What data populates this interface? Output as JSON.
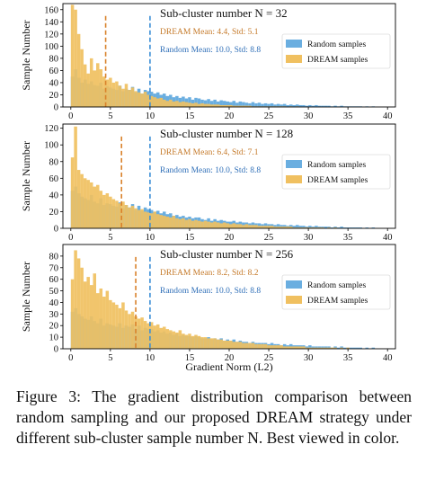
{
  "figure": {
    "xlabel": "Gradient Norm (L2)",
    "colors": {
      "random": "#6aaee0",
      "dream": "#f0c060",
      "dream_line": "#d9822b",
      "random_line": "#3d8fd6",
      "dream_text": "#c57a2a",
      "random_text": "#2f6fb8"
    }
  },
  "chart_data": [
    {
      "type": "bar",
      "title": "Sub-cluster number N = 32",
      "ylabel": "Sample Number",
      "xlabel": "",
      "xlim": [
        -1,
        41
      ],
      "ylim": [
        0,
        170
      ],
      "xticks": [
        0,
        5,
        10,
        15,
        20,
        25,
        30,
        35,
        40
      ],
      "yticks": [
        0,
        20,
        40,
        60,
        80,
        100,
        120,
        140,
        160
      ],
      "bin_width": 0.4,
      "legend": {
        "position": "right",
        "entries": [
          "Random samples",
          "DREAM samples"
        ]
      },
      "annotations": [
        "DREAM Mean: 4.4, Std: 5.1",
        "Random Mean: 10.0, Std: 8.8"
      ],
      "vlines": {
        "dream": 4.4,
        "random": 10.0
      },
      "series": [
        {
          "name": "Random samples",
          "values": [
            50,
            62,
            48,
            40,
            45,
            38,
            42,
            36,
            35,
            40,
            30,
            34,
            32,
            30,
            28,
            35,
            26,
            30,
            28,
            33,
            24,
            30,
            22,
            28,
            26,
            25,
            22,
            24,
            20,
            22,
            18,
            20,
            16,
            18,
            15,
            17,
            14,
            16,
            12,
            15,
            14,
            12,
            11,
            13,
            10,
            12,
            9,
            11,
            10,
            9,
            8,
            10,
            7,
            9,
            8,
            7,
            6,
            8,
            6,
            7,
            5,
            6,
            5,
            6,
            4,
            5,
            4,
            5,
            3,
            4,
            3,
            4,
            3,
            3,
            2,
            3,
            2,
            3,
            2,
            2,
            2,
            2,
            1,
            2,
            1,
            2,
            1,
            1,
            1,
            1,
            1,
            1,
            0,
            1,
            0,
            1,
            0,
            0,
            0,
            0
          ]
        },
        {
          "name": "DREAM samples",
          "values": [
            168,
            160,
            120,
            95,
            70,
            55,
            80,
            60,
            72,
            62,
            50,
            45,
            48,
            40,
            42,
            35,
            30,
            38,
            28,
            32,
            26,
            24,
            22,
            25,
            20,
            18,
            16,
            14,
            15,
            12,
            10,
            12,
            9,
            10,
            8,
            9,
            8,
            7,
            6,
            7,
            5,
            6,
            5,
            5,
            4,
            4,
            4,
            3,
            3,
            3,
            3,
            2,
            2,
            2,
            2,
            2,
            2,
            1,
            1,
            1,
            1,
            1,
            1,
            1,
            1,
            1,
            1,
            1,
            0,
            1,
            0,
            1,
            0,
            0,
            0,
            0,
            0,
            0,
            0,
            0,
            0,
            0,
            0,
            0,
            0,
            0,
            0,
            0,
            0,
            0,
            0,
            0,
            0,
            0,
            0,
            0,
            0,
            0,
            0,
            0
          ]
        }
      ]
    },
    {
      "type": "bar",
      "title": "Sub-cluster number N = 128",
      "ylabel": "Sample Number",
      "xlabel": "",
      "xlim": [
        -1,
        41
      ],
      "ylim": [
        0,
        125
      ],
      "xticks": [
        0,
        5,
        10,
        15,
        20,
        25,
        30,
        35,
        40
      ],
      "yticks": [
        0,
        20,
        40,
        60,
        80,
        100,
        120
      ],
      "bin_width": 0.4,
      "legend": {
        "position": "right",
        "entries": [
          "Random samples",
          "DREAM samples"
        ]
      },
      "annotations": [
        "DREAM Mean: 6.4, Std: 7.1",
        "Random Mean: 10.0, Std: 8.8"
      ],
      "vlines": {
        "dream": 6.4,
        "random": 10.0
      },
      "series": [
        {
          "name": "Random samples",
          "values": [
            45,
            50,
            42,
            38,
            36,
            34,
            40,
            32,
            30,
            36,
            28,
            30,
            29,
            27,
            26,
            31,
            24,
            28,
            25,
            29,
            22,
            27,
            21,
            25,
            23,
            22,
            20,
            21,
            18,
            20,
            17,
            18,
            15,
            16,
            14,
            15,
            13,
            14,
            12,
            13,
            13,
            11,
            10,
            12,
            9,
            11,
            9,
            10,
            9,
            8,
            8,
            9,
            7,
            8,
            7,
            7,
            6,
            7,
            6,
            6,
            5,
            6,
            5,
            5,
            4,
            5,
            4,
            4,
            3,
            4,
            3,
            4,
            3,
            3,
            2,
            3,
            2,
            3,
            2,
            2,
            2,
            2,
            1,
            2,
            1,
            2,
            1,
            1,
            1,
            1,
            1,
            1,
            0,
            1,
            0,
            1,
            0,
            0,
            0,
            0
          ]
        },
        {
          "name": "DREAM samples",
          "values": [
            85,
            122,
            70,
            65,
            60,
            58,
            55,
            50,
            52,
            45,
            40,
            42,
            38,
            35,
            33,
            30,
            32,
            28,
            25,
            27,
            24,
            22,
            23,
            20,
            19,
            18,
            20,
            17,
            16,
            15,
            14,
            13,
            15,
            12,
            11,
            12,
            10,
            11,
            9,
            10,
            9,
            8,
            9,
            8,
            7,
            8,
            7,
            6,
            7,
            6,
            5,
            6,
            5,
            5,
            4,
            5,
            4,
            4,
            4,
            3,
            3,
            3,
            3,
            3,
            2,
            2,
            2,
            2,
            2,
            2,
            1,
            1,
            1,
            1,
            1,
            1,
            1,
            1,
            1,
            1,
            0,
            1,
            0,
            1,
            0,
            0,
            0,
            0,
            0,
            0,
            0,
            0,
            0,
            0,
            0,
            0,
            0,
            0,
            0,
            0
          ]
        }
      ]
    },
    {
      "type": "bar",
      "title": "Sub-cluster number N = 256",
      "ylabel": "Sample Number",
      "xlabel": "Gradient Norm (L2)",
      "xlim": [
        -1,
        41
      ],
      "ylim": [
        0,
        90
      ],
      "xticks": [
        0,
        5,
        10,
        15,
        20,
        25,
        30,
        35,
        40
      ],
      "yticks": [
        0,
        10,
        20,
        30,
        40,
        50,
        60,
        70,
        80
      ],
      "bin_width": 0.4,
      "legend": {
        "position": "right",
        "entries": [
          "Random samples",
          "DREAM samples"
        ]
      },
      "annotations": [
        "DREAM Mean: 8.2, Std: 8.2",
        "Random Mean: 10.0, Std: 8.8"
      ],
      "vlines": {
        "dream": 8.2,
        "random": 10.0
      },
      "series": [
        {
          "name": "Random samples",
          "values": [
            32,
            35,
            30,
            28,
            26,
            25,
            28,
            24,
            22,
            26,
            20,
            22,
            21,
            20,
            19,
            22,
            18,
            20,
            19,
            21,
            17,
            20,
            16,
            18,
            17,
            17,
            15,
            16,
            14,
            15,
            13,
            14,
            12,
            13,
            11,
            12,
            11,
            11,
            10,
            11,
            10,
            9,
            9,
            10,
            8,
            9,
            8,
            9,
            7,
            8,
            7,
            8,
            6,
            7,
            6,
            6,
            5,
            6,
            5,
            5,
            5,
            5,
            4,
            5,
            4,
            4,
            3,
            4,
            3,
            4,
            3,
            3,
            3,
            3,
            2,
            3,
            2,
            2,
            2,
            2,
            2,
            2,
            1,
            2,
            1,
            2,
            1,
            1,
            1,
            1,
            1,
            1,
            0,
            1,
            0,
            1,
            0,
            0,
            0,
            0
          ]
        },
        {
          "name": "DREAM samples",
          "values": [
            60,
            85,
            78,
            70,
            58,
            62,
            55,
            65,
            48,
            52,
            45,
            50,
            42,
            40,
            38,
            35,
            40,
            33,
            30,
            32,
            28,
            26,
            27,
            24,
            22,
            23,
            20,
            21,
            18,
            19,
            17,
            16,
            15,
            14,
            16,
            13,
            12,
            13,
            11,
            12,
            11,
            10,
            10,
            9,
            9,
            9,
            8,
            8,
            7,
            7,
            7,
            6,
            6,
            6,
            5,
            5,
            5,
            5,
            4,
            4,
            4,
            4,
            3,
            3,
            3,
            3,
            3,
            2,
            2,
            2,
            2,
            2,
            2,
            2,
            1,
            1,
            1,
            1,
            1,
            1,
            1,
            1,
            1,
            1,
            0,
            1,
            0,
            1,
            0,
            0,
            0,
            0,
            0,
            0,
            0,
            0,
            0,
            0,
            0,
            0
          ]
        }
      ]
    }
  ],
  "caption": "Figure 3: The gradient distribution comparison between random sampling and our proposed DREAM strategy under different sub-cluster sample number N. Best viewed in color."
}
